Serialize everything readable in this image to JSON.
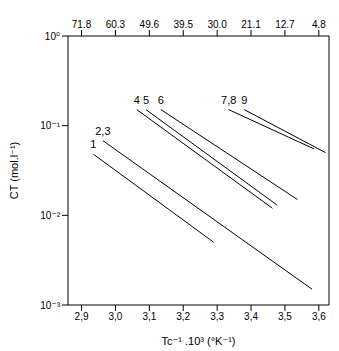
{
  "chart_data": {
    "type": "line",
    "x_label": "Tc⁻¹ .10³ (°K⁻¹)",
    "y_label": "CT (mol.l⁻¹)",
    "log": "y",
    "xlim": [
      2.86,
      3.63
    ],
    "xticks": [
      {
        "value": 2.9,
        "label": "2,9"
      },
      {
        "value": 3.0,
        "label": "3,0"
      },
      {
        "value": 3.1,
        "label": "3,1"
      },
      {
        "value": 3.2,
        "label": "3,2"
      },
      {
        "value": 3.3,
        "label": "3,3"
      },
      {
        "value": 3.4,
        "label": "3,4"
      },
      {
        "value": 3.5,
        "label": "3,5"
      },
      {
        "value": 3.6,
        "label": "3,6"
      }
    ],
    "x2ticks": [
      {
        "value": 2.9,
        "label": "71.8"
      },
      {
        "value": 3.0,
        "label": "60.3"
      },
      {
        "value": 3.1,
        "label": "49.6"
      },
      {
        "value": 3.2,
        "label": "39.5"
      },
      {
        "value": 3.3,
        "label": "30.0"
      },
      {
        "value": 3.4,
        "label": "21.1"
      },
      {
        "value": 3.5,
        "label": "12.7"
      },
      {
        "value": 3.6,
        "label": "4.8"
      }
    ],
    "ylim": [
      0.001,
      1
    ],
    "yticks": [
      {
        "value": 0.001,
        "label": "10⁻³"
      },
      {
        "value": 0.01,
        "label": "10⁻²"
      },
      {
        "value": 0.1,
        "label": "10⁻¹"
      },
      {
        "value": 1,
        "label": "10⁰"
      }
    ],
    "series": [
      {
        "name": "1",
        "color": "#000000",
        "x": [
          2.935,
          3.29
        ],
        "values": [
          0.048,
          0.005
        ]
      },
      {
        "name": "2,3",
        "color": "#000000",
        "x": [
          2.963,
          3.58
        ],
        "values": [
          0.068,
          0.0015
        ]
      },
      {
        "name": "4",
        "color": "#000000",
        "x": [
          3.063,
          3.463
        ],
        "values": [
          0.151,
          0.012
        ]
      },
      {
        "name": "5",
        "color": "#000000",
        "x": [
          3.09,
          3.477
        ],
        "values": [
          0.151,
          0.013
        ]
      },
      {
        "name": "6",
        "color": "#000000",
        "x": [
          3.134,
          3.537
        ],
        "values": [
          0.151,
          0.015
        ]
      },
      {
        "name": "7,8",
        "color": "#000000",
        "x": [
          3.334,
          3.586
        ],
        "values": [
          0.151,
          0.055
        ]
      },
      {
        "name": "9",
        "color": "#000000",
        "x": [
          3.38,
          3.62
        ],
        "values": [
          0.151,
          0.05
        ]
      }
    ]
  }
}
